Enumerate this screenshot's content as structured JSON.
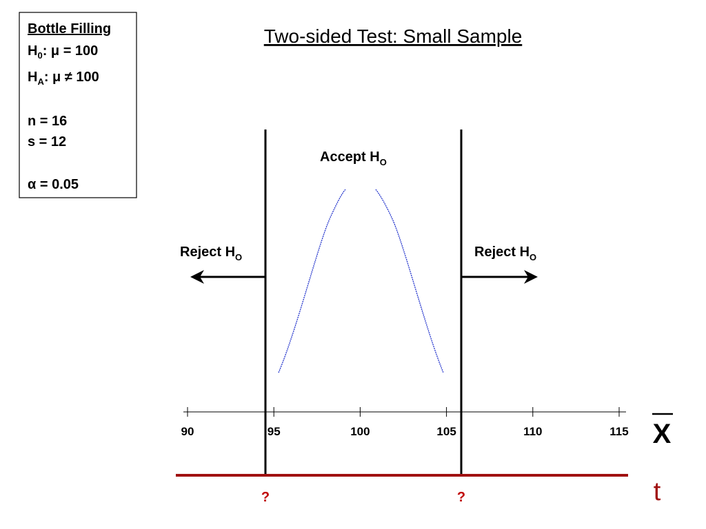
{
  "title": "Two-sided Test: Small Sample",
  "info_box": {
    "heading": "Bottle Filling",
    "null_hypothesis": {
      "symbol": "H",
      "subscript": "0",
      "statement": ": μ = 100"
    },
    "alt_hypothesis": {
      "symbol": "H",
      "subscript": "A",
      "statement": ": μ ≠ 100"
    },
    "sample_size": "n = 16",
    "std_dev": "s = 12",
    "alpha": "α = 0.05"
  },
  "regions": {
    "accept": {
      "text": "Accept H",
      "subscript": "O"
    },
    "reject_left": {
      "text": "Reject H",
      "subscript": "O"
    },
    "reject_right": {
      "text": "Reject H",
      "subscript": "O"
    }
  },
  "x_axis": {
    "range": [
      90,
      115
    ],
    "ticks": [
      90,
      95,
      100,
      105,
      110,
      115
    ],
    "label": "X"
  },
  "t_axis": {
    "label": "t",
    "critical_values": [
      "?",
      "?"
    ]
  }
}
